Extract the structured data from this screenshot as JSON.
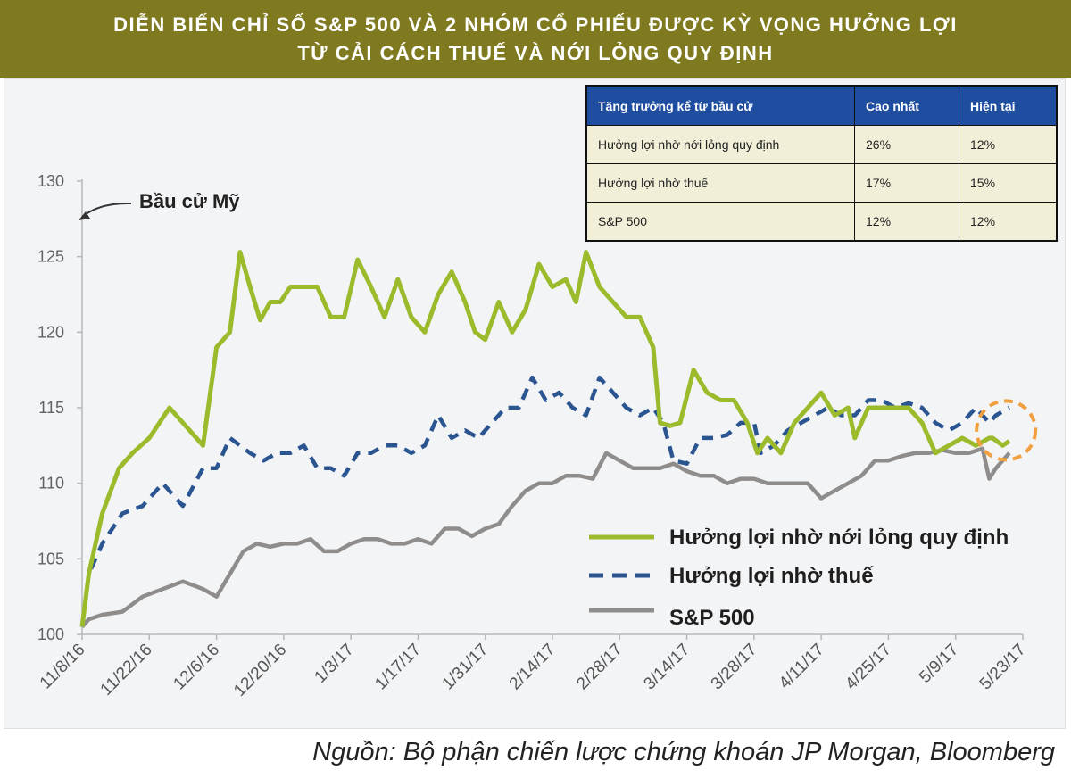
{
  "header": {
    "title_line1": "DIỄN BIẾN CHỈ SỐ S&P 500 VÀ 2 NHÓM CỔ PHIẾU ĐƯỢC KỲ VỌNG HƯỞNG LỢI",
    "title_line2": "TỪ CẢI CÁCH THUẾ VÀ NỚI LỎNG QUY ĐỊNH"
  },
  "table": {
    "headers": [
      "Tăng trưởng kể từ bầu cử",
      "Cao nhất",
      "Hiện tại"
    ],
    "rows": [
      [
        "Hưởng lợi nhờ nới lỏng quy định",
        "26%",
        "12%"
      ],
      [
        "Hưởng lợi nhờ thuế",
        "17%",
        "15%"
      ],
      [
        "S&P 500",
        "12%",
        "12%"
      ]
    ]
  },
  "source": "Nguồn: Bộ phận chiến lược chứng khoán JP Morgan, Bloomberg",
  "colors": {
    "header_bg": "#7f7a1f",
    "table_header_bg": "#1f4ea0",
    "table_body_bg": "#f2efd9",
    "dereg": "#9cbb2c",
    "tax": "#2a5591",
    "sp500": "#8f8c8c",
    "highlight": "#f0a040"
  },
  "chart_data": {
    "type": "line",
    "title": "DIỄN BIẾN CHỈ SỐ S&P 500 VÀ 2 NHÓM CỔ PHIẾU ĐƯỢC KỲ VỌNG HƯỞNG LỢI TỪ CẢI CÁCH THUẾ VÀ NỚI LỎNG QUY ĐỊNH",
    "xlabel": "",
    "ylabel": "",
    "ylim": [
      100,
      130
    ],
    "yticks": [
      100,
      105,
      110,
      115,
      120,
      125,
      130
    ],
    "xticks": [
      "11/8/16",
      "11/22/16",
      "12/6/16",
      "12/20/16",
      "1/3/17",
      "1/17/17",
      "1/31/17",
      "2/14/17",
      "2/28/17",
      "3/14/17",
      "3/28/17",
      "4/11/17",
      "4/25/17",
      "5/9/17",
      "5/23/17"
    ],
    "x_index_range": [
      0,
      14
    ],
    "annotation": "Bầu cử Mỹ",
    "legend": [
      "Hưởng lợi nhờ nới lỏng quy định",
      "Hưởng lợi nhờ thuế",
      "S&P 500"
    ],
    "series": [
      {
        "name": "Hưởng lợi nhờ nới lỏng quy định",
        "style": "solid",
        "x": [
          0,
          0.1,
          0.3,
          0.55,
          0.75,
          1.0,
          1.3,
          1.5,
          1.8,
          2.0,
          2.2,
          2.35,
          2.5,
          2.65,
          2.8,
          2.95,
          3.1,
          3.3,
          3.5,
          3.7,
          3.9,
          4.1,
          4.3,
          4.5,
          4.7,
          4.9,
          5.1,
          5.3,
          5.5,
          5.7,
          5.85,
          6.0,
          6.2,
          6.4,
          6.6,
          6.8,
          7.0,
          7.2,
          7.35,
          7.5,
          7.7,
          7.9,
          8.1,
          8.3,
          8.5,
          8.6,
          8.75,
          8.9,
          9.1,
          9.3,
          9.5,
          9.7,
          9.9,
          10.05,
          10.2,
          10.4,
          10.6,
          10.8,
          11.0,
          11.2,
          11.4,
          11.5,
          11.7,
          11.9,
          12.1,
          12.3,
          12.5,
          12.7,
          12.9,
          13.1,
          13.3,
          13.5,
          13.55,
          13.7,
          13.8
        ],
        "values": [
          100.5,
          104,
          108,
          111,
          112,
          113,
          115,
          114,
          112.5,
          119,
          120,
          125.3,
          123,
          120.8,
          122,
          122,
          123,
          123,
          123,
          121,
          121,
          124.8,
          123,
          121,
          123.5,
          121,
          120,
          122.5,
          124,
          122,
          120,
          119.5,
          122,
          120,
          121.5,
          124.5,
          123,
          123.5,
          122,
          125.3,
          123,
          122,
          121,
          121,
          119,
          114,
          113.8,
          114,
          117.5,
          116,
          115.5,
          115.5,
          114,
          112,
          113,
          112,
          114,
          115,
          116,
          114.5,
          115,
          113,
          115,
          115,
          115,
          115,
          114,
          112,
          112.5,
          113,
          112.5,
          113,
          113,
          112.5,
          112.8
        ]
      },
      {
        "name": "Hưởng lợi nhờ thuế",
        "style": "dashed",
        "x": [
          0,
          0.1,
          0.3,
          0.6,
          0.9,
          1.2,
          1.5,
          1.8,
          2.0,
          2.2,
          2.35,
          2.5,
          2.7,
          2.9,
          3.1,
          3.3,
          3.5,
          3.7,
          3.9,
          4.1,
          4.3,
          4.5,
          4.7,
          4.9,
          5.1,
          5.3,
          5.5,
          5.7,
          5.9,
          6.1,
          6.3,
          6.5,
          6.7,
          6.9,
          7.1,
          7.3,
          7.5,
          7.7,
          7.9,
          8.1,
          8.3,
          8.5,
          8.65,
          8.8,
          9.0,
          9.2,
          9.4,
          9.6,
          9.8,
          10.0,
          10.1,
          10.3,
          10.5,
          10.7,
          10.9,
          11.1,
          11.3,
          11.5,
          11.7,
          11.9,
          12.1,
          12.3,
          12.5,
          12.7,
          12.9,
          13.1,
          13.3,
          13.5,
          13.6,
          13.8
        ],
        "values": [
          100.5,
          104,
          106,
          108,
          108.5,
          110,
          108.5,
          111,
          111,
          113,
          112.5,
          112,
          111.5,
          112,
          112,
          112.5,
          111,
          111,
          110.5,
          112,
          112,
          112.5,
          112.5,
          112,
          112.5,
          114.5,
          113,
          113.5,
          113,
          114,
          115,
          115,
          117,
          115.5,
          116,
          115,
          114.5,
          117,
          116,
          115,
          114.5,
          115,
          114,
          111.5,
          111.3,
          113,
          113,
          113.2,
          114,
          114,
          112,
          112.5,
          113.5,
          114,
          114.5,
          115,
          114.5,
          114.5,
          115.5,
          115.5,
          115,
          115.3,
          115,
          114,
          113.5,
          114,
          115,
          114,
          114.5,
          115
        ]
      },
      {
        "name": "S&P 500",
        "style": "solid",
        "x": [
          0,
          0.1,
          0.3,
          0.6,
          0.9,
          1.2,
          1.5,
          1.8,
          2.0,
          2.2,
          2.4,
          2.6,
          2.8,
          3.0,
          3.2,
          3.4,
          3.6,
          3.8,
          4.0,
          4.2,
          4.4,
          4.6,
          4.8,
          5.0,
          5.2,
          5.4,
          5.6,
          5.8,
          6.0,
          6.2,
          6.4,
          6.6,
          6.8,
          7.0,
          7.2,
          7.4,
          7.6,
          7.8,
          8.0,
          8.2,
          8.4,
          8.6,
          8.8,
          9.0,
          9.2,
          9.4,
          9.6,
          9.8,
          10.0,
          10.2,
          10.4,
          10.6,
          10.8,
          11.0,
          11.2,
          11.4,
          11.6,
          11.8,
          12.0,
          12.2,
          12.4,
          12.6,
          12.8,
          13.0,
          13.2,
          13.4,
          13.5,
          13.6,
          13.8
        ],
        "values": [
          100.5,
          101,
          101.3,
          101.5,
          102.5,
          103,
          103.5,
          103,
          102.5,
          104,
          105.5,
          106,
          105.8,
          106,
          106,
          106.3,
          105.5,
          105.5,
          106,
          106.3,
          106.3,
          106,
          106,
          106.3,
          106,
          107,
          107,
          106.5,
          107,
          107.3,
          108.5,
          109.5,
          110,
          110,
          110.5,
          110.5,
          110.3,
          112,
          111.5,
          111,
          111,
          111,
          111.3,
          110.8,
          110.5,
          110.5,
          110,
          110.3,
          110.3,
          110,
          110,
          110,
          110,
          109,
          109.5,
          110,
          110.5,
          111.5,
          111.5,
          111.8,
          112,
          112,
          112.2,
          112,
          112,
          112.3,
          110.3,
          111,
          112
        ]
      }
    ]
  }
}
